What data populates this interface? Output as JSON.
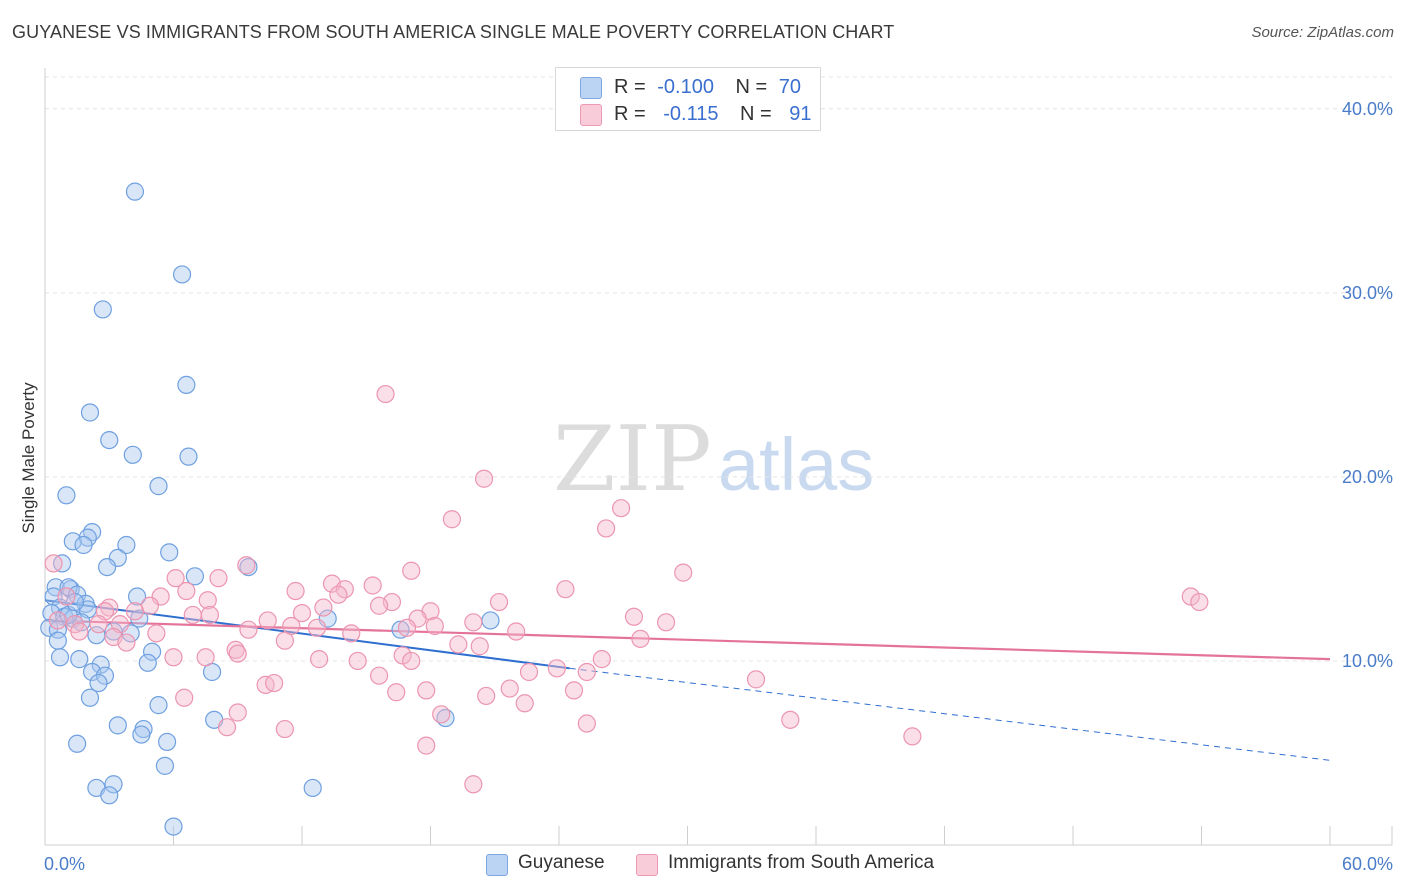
{
  "title": "GUYANESE VS IMMIGRANTS FROM SOUTH AMERICA SINGLE MALE POVERTY CORRELATION CHART",
  "source": "Source: ZipAtlas.com",
  "watermark": {
    "zip": "ZIP",
    "atlas": "atlas"
  },
  "legend": {
    "rows": [
      {
        "r_label": "R =",
        "r_value": "-0.100",
        "n_label": "N =",
        "n_value": "70",
        "color": "#a9c8f0"
      },
      {
        "r_label": "R =",
        "r_value": "-0.115",
        "n_label": "N =",
        "n_value": "91",
        "color": "#f5b8cb"
      }
    ]
  },
  "bottom_legend": [
    {
      "label": "Guyanese",
      "color": "#a9c8f0"
    },
    {
      "label": "Immigrants from South America",
      "color": "#f5b8cb"
    }
  ],
  "chart_data": {
    "type": "scatter",
    "title": "GUYANESE VS IMMIGRANTS FROM SOUTH AMERICA SINGLE MALE POVERTY CORRELATION CHART",
    "xlabel": "",
    "ylabel": "Single Male Poverty",
    "xlim": [
      0,
      60
    ],
    "ylim": [
      0,
      42
    ],
    "x_tick_labels": [
      "0.0%",
      "60.0%"
    ],
    "y_ticks": [
      10,
      20,
      30,
      40
    ],
    "y_tick_labels": [
      "10.0%",
      "20.0%",
      "30.0%",
      "40.0%"
    ],
    "grid": "horizontal dashed",
    "legend_position": "top-center",
    "series": [
      {
        "name": "Guyanese",
        "color": "#6fa0e0",
        "fill": "#a9c8f0",
        "trend": {
          "x0": 0,
          "y0": 13.3,
          "x1": 24.5,
          "y1": 9.6,
          "dashed_to_x": 60,
          "dashed_to_y": 4.6,
          "color": "#2f6fd0"
        },
        "points": [
          [
            4.2,
            35.5
          ],
          [
            6.4,
            31.0
          ],
          [
            2.7,
            29.1
          ],
          [
            6.6,
            25.0
          ],
          [
            2.1,
            23.5
          ],
          [
            3.0,
            22.0
          ],
          [
            4.1,
            21.2
          ],
          [
            6.7,
            21.1
          ],
          [
            5.3,
            19.5
          ],
          [
            1.0,
            19.0
          ],
          [
            2.2,
            17.0
          ],
          [
            1.3,
            16.5
          ],
          [
            2.0,
            16.7
          ],
          [
            1.8,
            16.3
          ],
          [
            3.8,
            16.3
          ],
          [
            5.8,
            15.9
          ],
          [
            0.8,
            15.3
          ],
          [
            3.4,
            15.6
          ],
          [
            2.9,
            15.1
          ],
          [
            9.5,
            15.1
          ],
          [
            7.0,
            14.6
          ],
          [
            0.5,
            14.0
          ],
          [
            1.2,
            13.9
          ],
          [
            1.1,
            14.0
          ],
          [
            1.5,
            13.6
          ],
          [
            0.4,
            13.5
          ],
          [
            4.3,
            13.5
          ],
          [
            1.9,
            13.1
          ],
          [
            0.7,
            12.9
          ],
          [
            2.0,
            12.8
          ],
          [
            0.3,
            12.6
          ],
          [
            0.9,
            12.4
          ],
          [
            1.3,
            12.3
          ],
          [
            1.7,
            12.1
          ],
          [
            4.4,
            12.3
          ],
          [
            13.2,
            12.3
          ],
          [
            20.8,
            12.2
          ],
          [
            0.2,
            11.8
          ],
          [
            0.6,
            11.7
          ],
          [
            2.4,
            11.4
          ],
          [
            3.2,
            11.6
          ],
          [
            4.0,
            11.5
          ],
          [
            16.6,
            11.7
          ],
          [
            0.6,
            11.1
          ],
          [
            5.0,
            10.5
          ],
          [
            0.7,
            10.2
          ],
          [
            1.6,
            10.1
          ],
          [
            2.6,
            9.8
          ],
          [
            4.8,
            9.9
          ],
          [
            7.8,
            9.4
          ],
          [
            2.2,
            9.4
          ],
          [
            2.8,
            9.2
          ],
          [
            2.5,
            8.8
          ],
          [
            2.1,
            8.0
          ],
          [
            5.3,
            7.6
          ],
          [
            7.9,
            6.8
          ],
          [
            3.4,
            6.5
          ],
          [
            4.6,
            6.3
          ],
          [
            4.5,
            6.0
          ],
          [
            1.5,
            5.5
          ],
          [
            5.7,
            5.6
          ],
          [
            18.7,
            6.9
          ],
          [
            5.6,
            4.3
          ],
          [
            3.2,
            3.3
          ],
          [
            2.4,
            3.1
          ],
          [
            3.0,
            2.7
          ],
          [
            12.5,
            3.1
          ],
          [
            6.0,
            1.0
          ],
          [
            1.1,
            12.5
          ],
          [
            1.4,
            13.2
          ]
        ]
      },
      {
        "name": "Immigrants from South America",
        "color": "#ec95b0",
        "fill": "#f5b8cb",
        "trend": {
          "x0": 0,
          "y0": 12.2,
          "x1": 60,
          "y1": 10.1,
          "color": "#e4739a"
        },
        "points": [
          [
            0.4,
            15.3
          ],
          [
            15.9,
            24.5
          ],
          [
            20.5,
            19.9
          ],
          [
            26.9,
            18.3
          ],
          [
            19.0,
            17.7
          ],
          [
            26.2,
            17.2
          ],
          [
            9.4,
            15.2
          ],
          [
            17.1,
            14.9
          ],
          [
            29.8,
            14.8
          ],
          [
            6.1,
            14.5
          ],
          [
            8.1,
            14.5
          ],
          [
            13.4,
            14.2
          ],
          [
            15.3,
            14.1
          ],
          [
            24.3,
            13.9
          ],
          [
            6.6,
            13.8
          ],
          [
            14.0,
            13.9
          ],
          [
            11.7,
            13.8
          ],
          [
            13.7,
            13.6
          ],
          [
            1.0,
            13.5
          ],
          [
            5.4,
            13.5
          ],
          [
            7.6,
            13.3
          ],
          [
            16.2,
            13.2
          ],
          [
            21.2,
            13.2
          ],
          [
            53.5,
            13.5
          ],
          [
            53.9,
            13.2
          ],
          [
            3.0,
            12.9
          ],
          [
            4.9,
            13.0
          ],
          [
            2.8,
            12.7
          ],
          [
            4.2,
            12.7
          ],
          [
            13.0,
            12.9
          ],
          [
            15.6,
            13.0
          ],
          [
            18.0,
            12.7
          ],
          [
            6.9,
            12.5
          ],
          [
            7.7,
            12.5
          ],
          [
            12.0,
            12.6
          ],
          [
            17.4,
            12.3
          ],
          [
            27.5,
            12.4
          ],
          [
            10.4,
            12.2
          ],
          [
            0.6,
            12.2
          ],
          [
            1.4,
            12.0
          ],
          [
            2.5,
            12.0
          ],
          [
            3.5,
            12.0
          ],
          [
            5.2,
            11.5
          ],
          [
            11.5,
            11.9
          ],
          [
            12.7,
            11.8
          ],
          [
            18.2,
            11.9
          ],
          [
            20.0,
            12.1
          ],
          [
            29.0,
            12.1
          ],
          [
            1.6,
            11.6
          ],
          [
            9.5,
            11.7
          ],
          [
            14.3,
            11.5
          ],
          [
            16.9,
            11.8
          ],
          [
            3.2,
            11.3
          ],
          [
            11.2,
            11.1
          ],
          [
            22.0,
            11.6
          ],
          [
            27.8,
            11.2
          ],
          [
            3.8,
            11.0
          ],
          [
            8.9,
            10.6
          ],
          [
            19.3,
            10.9
          ],
          [
            20.3,
            10.8
          ],
          [
            9.0,
            10.4
          ],
          [
            16.7,
            10.3
          ],
          [
            6.0,
            10.2
          ],
          [
            7.5,
            10.2
          ],
          [
            12.8,
            10.1
          ],
          [
            14.6,
            10.0
          ],
          [
            17.1,
            10.0
          ],
          [
            26.0,
            10.1
          ],
          [
            23.9,
            9.6
          ],
          [
            15.6,
            9.2
          ],
          [
            22.6,
            9.4
          ],
          [
            25.3,
            9.4
          ],
          [
            33.2,
            9.0
          ],
          [
            10.3,
            8.7
          ],
          [
            10.7,
            8.8
          ],
          [
            16.4,
            8.3
          ],
          [
            17.8,
            8.4
          ],
          [
            20.6,
            8.1
          ],
          [
            21.7,
            8.5
          ],
          [
            24.7,
            8.4
          ],
          [
            6.5,
            8.0
          ],
          [
            22.4,
            7.7
          ],
          [
            9.0,
            7.2
          ],
          [
            18.5,
            7.1
          ],
          [
            25.3,
            6.6
          ],
          [
            11.2,
            6.3
          ],
          [
            8.5,
            6.4
          ],
          [
            34.8,
            6.8
          ],
          [
            40.5,
            5.9
          ],
          [
            17.8,
            5.4
          ],
          [
            20.0,
            3.3
          ]
        ]
      }
    ]
  }
}
